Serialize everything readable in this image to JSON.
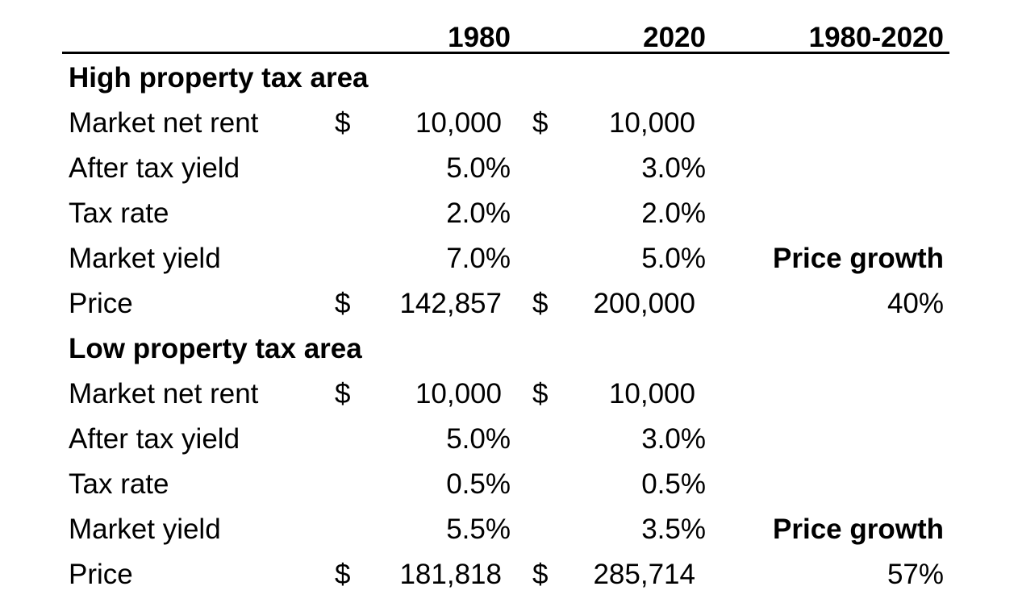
{
  "table": {
    "header": {
      "col_1980": "1980",
      "col_2020": "2020",
      "col_range": "1980-2020"
    },
    "sections": [
      {
        "title": "High property tax area",
        "rows": [
          {
            "label": "Market net rent",
            "cur1980": "$",
            "v1980": "10,000",
            "cur2020": "$",
            "v2020": "10,000",
            "growth": ""
          },
          {
            "label": "After tax yield",
            "cur1980": "",
            "v1980": "5.0%",
            "cur2020": "",
            "v2020": "3.0%",
            "growth": ""
          },
          {
            "label": "Tax rate",
            "cur1980": "",
            "v1980": "2.0%",
            "cur2020": "",
            "v2020": "2.0%",
            "growth": ""
          },
          {
            "label": "Market yield",
            "cur1980": "",
            "v1980": "7.0%",
            "cur2020": "",
            "v2020": "5.0%",
            "growth": "Price growth"
          },
          {
            "label": "Price",
            "cur1980": "$",
            "v1980": "142,857",
            "cur2020": "$",
            "v2020": "200,000",
            "growth": "40%"
          }
        ]
      },
      {
        "title": "Low property tax area",
        "rows": [
          {
            "label": "Market net rent",
            "cur1980": "$",
            "v1980": "10,000",
            "cur2020": "$",
            "v2020": "10,000",
            "growth": ""
          },
          {
            "label": "After tax yield",
            "cur1980": "",
            "v1980": "5.0%",
            "cur2020": "",
            "v2020": "3.0%",
            "growth": ""
          },
          {
            "label": "Tax rate",
            "cur1980": "",
            "v1980": "0.5%",
            "cur2020": "",
            "v2020": "0.5%",
            "growth": ""
          },
          {
            "label": "Market yield",
            "cur1980": "",
            "v1980": "5.5%",
            "cur2020": "",
            "v2020": "3.5%",
            "growth": "Price growth"
          },
          {
            "label": "Price",
            "cur1980": "$",
            "v1980": "181,818",
            "cur2020": "$",
            "v2020": "285,714",
            "growth": "57%"
          }
        ]
      }
    ],
    "colors": {
      "text": "#000000",
      "background": "#ffffff",
      "rule": "#000000"
    }
  }
}
